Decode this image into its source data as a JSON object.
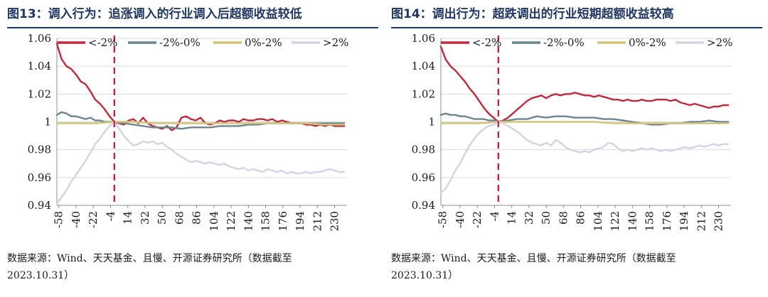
{
  "colors": {
    "title": "#1f3864",
    "series": [
      "#c0283c",
      "#6b868f",
      "#d4c47a",
      "#d5d2e6"
    ],
    "event_line": "#c0283c",
    "grid": "#d9d9d9"
  },
  "charts": [
    {
      "title": "图13：调入行为：追涨调入的行业调入后超额收益较低",
      "source_line1": "数据来源：Wind、天天基金、且慢、开源证券研究所（数据截至",
      "source_line2": "2023.10.31）"
    },
    {
      "title": "图14：调出行为：超跌调出的行业短期超额收益较高",
      "source_line1": "数据来源：Wind、天天基金、且慢、开源证券研究所（数据截至",
      "source_line2": "2023.10.31）"
    }
  ],
  "chart_data": [
    {
      "type": "line",
      "title": "图13：调入行为：追涨调入的行业调入后超额收益较低",
      "xlabel": "",
      "ylabel": "",
      "x_range": [
        -60,
        243
      ],
      "ylim": [
        0.94,
        1.06
      ],
      "yticks": [
        0.94,
        0.96,
        0.98,
        1.0,
        1.02,
        1.04,
        1.06
      ],
      "ytick_labels": [
        "0.94",
        "0.96",
        "0.98",
        "1",
        "1.02",
        "1.04",
        "1.06"
      ],
      "xticks": [
        -58,
        -40,
        -22,
        -4,
        14,
        32,
        50,
        68,
        86,
        104,
        122,
        140,
        158,
        176,
        194,
        212,
        230
      ],
      "event_x": 0,
      "grid": true,
      "legend": "top",
      "series": [
        {
          "name": "<-2%",
          "x": [
            -60,
            -55,
            -50,
            -45,
            -40,
            -35,
            -30,
            -25,
            -20,
            -15,
            -10,
            -5,
            0,
            5,
            10,
            15,
            20,
            25,
            30,
            35,
            40,
            45,
            50,
            55,
            60,
            65,
            70,
            75,
            80,
            85,
            90,
            95,
            100,
            105,
            110,
            115,
            120,
            125,
            130,
            135,
            140,
            145,
            150,
            155,
            160,
            165,
            170,
            175,
            180,
            185,
            190,
            195,
            200,
            205,
            210,
            215,
            220,
            225,
            230,
            235,
            240
          ],
          "y": [
            1.056,
            1.045,
            1.04,
            1.038,
            1.034,
            1.029,
            1.027,
            1.022,
            1.016,
            1.013,
            1.009,
            1.004,
            1.0,
            0.999,
            0.998,
            1.001,
            1.002,
            0.999,
            1.003,
            0.999,
            0.997,
            0.996,
            0.995,
            0.997,
            0.994,
            0.996,
            1.003,
            1.004,
            1.002,
            1.001,
            1.003,
            0.999,
            0.998,
            0.999,
            1.001,
            1.0,
            1.001,
            1.001,
            1.0,
            1.002,
            1.001,
            1.001,
            1.002,
            1.002,
            1.001,
            1.002,
            1.0,
            1.001,
            1.0,
            0.999,
            0.999,
            0.999,
            0.998,
            0.998,
            0.997,
            0.998,
            0.997,
            0.998,
            0.997,
            0.997,
            0.997
          ]
        },
        {
          "name": "-2%-0%",
          "x": [
            -60,
            -55,
            -50,
            -45,
            -40,
            -35,
            -30,
            -25,
            -20,
            -15,
            -10,
            -5,
            0,
            10,
            20,
            30,
            40,
            50,
            60,
            70,
            80,
            90,
            100,
            110,
            120,
            130,
            140,
            150,
            160,
            170,
            180,
            190,
            200,
            210,
            220,
            230,
            240
          ],
          "y": [
            1.005,
            1.007,
            1.006,
            1.004,
            1.004,
            1.003,
            1.002,
            1.003,
            1.001,
            1.001,
            1.0,
            1.0,
            1.0,
            0.999,
            0.998,
            0.997,
            0.996,
            0.996,
            0.996,
            0.995,
            0.996,
            0.996,
            0.996,
            0.997,
            0.997,
            0.997,
            0.998,
            0.998,
            0.999,
            0.999,
            0.999,
            0.999,
            0.999,
            0.999,
            0.999,
            0.999,
            0.999
          ]
        },
        {
          "name": "0%-2%",
          "x": [
            -60,
            -40,
            -20,
            0,
            20,
            40,
            60,
            80,
            100,
            120,
            140,
            160,
            180,
            200,
            220,
            240
          ],
          "y": [
            0.999,
            0.999,
            0.999,
            1.0,
            1.0,
            0.999,
            0.999,
            0.999,
            0.999,
            0.999,
            0.999,
            0.999,
            0.999,
            0.999,
            0.998,
            0.998
          ]
        },
        {
          "name": ">2%",
          "x": [
            -60,
            -55,
            -50,
            -45,
            -40,
            -35,
            -30,
            -25,
            -20,
            -15,
            -10,
            -5,
            0,
            5,
            10,
            15,
            20,
            25,
            30,
            35,
            40,
            45,
            50,
            55,
            60,
            65,
            70,
            75,
            80,
            85,
            90,
            95,
            100,
            105,
            110,
            115,
            120,
            125,
            130,
            135,
            140,
            145,
            150,
            155,
            160,
            165,
            170,
            175,
            180,
            185,
            190,
            195,
            200,
            205,
            210,
            215,
            220,
            225,
            230,
            235,
            240
          ],
          "y": [
            0.941,
            0.946,
            0.951,
            0.957,
            0.962,
            0.967,
            0.972,
            0.978,
            0.984,
            0.988,
            0.993,
            0.997,
            1.0,
            0.995,
            0.99,
            0.986,
            0.983,
            0.984,
            0.986,
            0.985,
            0.986,
            0.984,
            0.985,
            0.982,
            0.98,
            0.977,
            0.975,
            0.973,
            0.971,
            0.972,
            0.971,
            0.97,
            0.971,
            0.97,
            0.969,
            0.97,
            0.968,
            0.967,
            0.966,
            0.967,
            0.965,
            0.966,
            0.965,
            0.964,
            0.966,
            0.965,
            0.964,
            0.965,
            0.963,
            0.964,
            0.963,
            0.963,
            0.964,
            0.963,
            0.964,
            0.964,
            0.965,
            0.966,
            0.965,
            0.964,
            0.964
          ]
        }
      ]
    },
    {
      "type": "line",
      "title": "图14：调出行为：超跌调出的行业短期超额收益较高",
      "xlabel": "",
      "ylabel": "",
      "x_range": [
        -60,
        243
      ],
      "ylim": [
        0.94,
        1.06
      ],
      "yticks": [
        0.94,
        0.96,
        0.98,
        1.0,
        1.02,
        1.04,
        1.06
      ],
      "ytick_labels": [
        "0.94",
        "0.96",
        "0.98",
        "1",
        "1.02",
        "1.04",
        "1.06"
      ],
      "xticks": [
        -58,
        -40,
        -22,
        -4,
        14,
        32,
        50,
        68,
        86,
        104,
        122,
        140,
        158,
        176,
        194,
        212,
        230
      ],
      "event_x": 0,
      "grid": true,
      "legend": "top",
      "series": [
        {
          "name": "<-2%",
          "x": [
            -60,
            -55,
            -50,
            -45,
            -40,
            -35,
            -30,
            -25,
            -20,
            -15,
            -10,
            -5,
            0,
            5,
            10,
            15,
            20,
            25,
            30,
            35,
            40,
            45,
            50,
            55,
            60,
            65,
            70,
            75,
            80,
            85,
            90,
            95,
            100,
            105,
            110,
            115,
            120,
            125,
            130,
            135,
            140,
            145,
            150,
            155,
            160,
            165,
            170,
            175,
            180,
            185,
            190,
            195,
            200,
            205,
            210,
            215,
            220,
            225,
            230,
            235,
            240
          ],
          "y": [
            1.054,
            1.045,
            1.04,
            1.037,
            1.033,
            1.029,
            1.024,
            1.02,
            1.015,
            1.01,
            1.006,
            1.003,
            1.0,
            1.001,
            1.003,
            1.006,
            1.009,
            1.012,
            1.015,
            1.017,
            1.018,
            1.019,
            1.017,
            1.019,
            1.02,
            1.019,
            1.02,
            1.02,
            1.021,
            1.02,
            1.019,
            1.019,
            1.018,
            1.019,
            1.018,
            1.017,
            1.016,
            1.016,
            1.015,
            1.016,
            1.015,
            1.015,
            1.016,
            1.015,
            1.015,
            1.016,
            1.016,
            1.016,
            1.015,
            1.016,
            1.014,
            1.013,
            1.012,
            1.013,
            1.012,
            1.011,
            1.01,
            1.011,
            1.011,
            1.012,
            1.012
          ]
        },
        {
          "name": "-2%-0%",
          "x": [
            -60,
            -55,
            -50,
            -45,
            -40,
            -35,
            -30,
            -25,
            -20,
            -15,
            -10,
            -5,
            0,
            10,
            20,
            30,
            40,
            50,
            60,
            70,
            80,
            90,
            100,
            110,
            120,
            130,
            140,
            150,
            160,
            170,
            180,
            190,
            200,
            210,
            220,
            230,
            240
          ],
          "y": [
            1.005,
            1.006,
            1.005,
            1.005,
            1.004,
            1.004,
            1.003,
            1.002,
            1.002,
            1.002,
            1.001,
            1.001,
            1.0,
            1.001,
            1.002,
            1.002,
            1.004,
            1.003,
            1.004,
            1.004,
            1.003,
            1.003,
            1.003,
            1.002,
            1.002,
            1.001,
            1.0,
            0.999,
            0.998,
            0.998,
            0.999,
            0.999,
            1.0,
            1.0,
            1.001,
            1.0,
            1.0
          ]
        },
        {
          "name": "0%-2%",
          "x": [
            -60,
            -40,
            -20,
            0,
            20,
            40,
            60,
            80,
            100,
            120,
            140,
            160,
            180,
            200,
            220,
            240
          ],
          "y": [
            0.999,
            0.999,
            0.999,
            1.0,
            1.0,
            1.0,
            1.0,
            1.0,
            1.0,
            0.999,
            0.999,
            0.999,
            0.999,
            0.999,
            0.999,
            0.999
          ]
        },
        {
          "name": ">2%",
          "x": [
            -60,
            -55,
            -50,
            -45,
            -40,
            -35,
            -30,
            -25,
            -20,
            -15,
            -10,
            -5,
            0,
            5,
            10,
            15,
            20,
            25,
            30,
            35,
            40,
            45,
            50,
            55,
            60,
            65,
            70,
            75,
            80,
            85,
            90,
            95,
            100,
            105,
            110,
            115,
            120,
            125,
            130,
            135,
            140,
            145,
            150,
            155,
            160,
            165,
            170,
            175,
            180,
            185,
            190,
            195,
            200,
            205,
            210,
            215,
            220,
            225,
            230,
            235,
            240
          ],
          "y": [
            0.949,
            0.952,
            0.958,
            0.965,
            0.97,
            0.977,
            0.983,
            0.988,
            0.992,
            0.995,
            0.997,
            0.998,
            1.0,
            0.999,
            0.997,
            0.995,
            0.993,
            0.99,
            0.987,
            0.985,
            0.984,
            0.983,
            0.985,
            0.983,
            0.987,
            0.985,
            0.982,
            0.98,
            0.979,
            0.978,
            0.979,
            0.978,
            0.98,
            0.981,
            0.982,
            0.985,
            0.984,
            0.981,
            0.979,
            0.98,
            0.979,
            0.98,
            0.981,
            0.98,
            0.981,
            0.98,
            0.979,
            0.98,
            0.979,
            0.98,
            0.981,
            0.982,
            0.981,
            0.982,
            0.983,
            0.982,
            0.983,
            0.984,
            0.983,
            0.984,
            0.984
          ]
        }
      ]
    }
  ]
}
